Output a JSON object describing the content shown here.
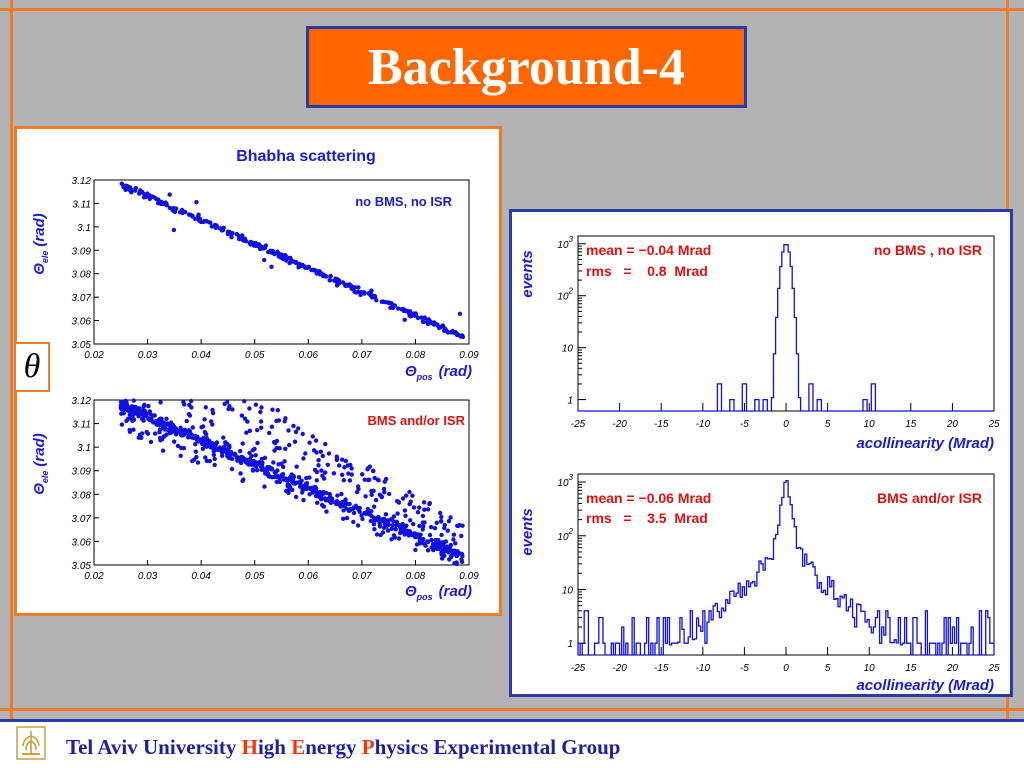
{
  "slide": {
    "title": "Background-4",
    "theta_symbol": "θ",
    "footer": [
      {
        "text": "Tel Aviv University ",
        "red": false
      },
      {
        "text": "H",
        "red": true
      },
      {
        "text": "igh ",
        "red": false
      },
      {
        "text": "E",
        "red": true
      },
      {
        "text": "nergy ",
        "red": false
      },
      {
        "text": "P",
        "red": true
      },
      {
        "text": "hysics Experimental Group",
        "red": false
      }
    ]
  },
  "chart_data": [
    {
      "type": "scatter",
      "title": "Bhabha scattering",
      "annotation": "no BMS, no ISR",
      "xlabel": "pos",
      "ylabel": "ele",
      "axis_symbol": "Θ",
      "axis_unit": "(rad)",
      "xlim": [
        0.02,
        0.09
      ],
      "ylim": [
        3.05,
        3.12
      ],
      "xticks": [
        "0.02",
        "0.03",
        "0.04",
        "0.05",
        "0.06",
        "0.07",
        "0.08",
        "0.09"
      ],
      "yticks": [
        "3.05",
        "3.06",
        "3.07",
        "3.08",
        "3.09",
        "3.1",
        "3.11",
        "3.12"
      ],
      "trend": {
        "x": [
          0.025,
          0.089
        ],
        "y": [
          3.118,
          3.053
        ]
      },
      "points_estimated": 330,
      "color": "#1010e0"
    },
    {
      "type": "scatter",
      "title": "",
      "annotation": "BMS and/or ISR",
      "xlabel": "pos",
      "ylabel": "ele",
      "axis_symbol": "Θ",
      "axis_unit": "(rad)",
      "xlim": [
        0.02,
        0.09
      ],
      "ylim": [
        3.05,
        3.12
      ],
      "xticks": [
        "0.02",
        "0.03",
        "0.04",
        "0.05",
        "0.06",
        "0.07",
        "0.08",
        "0.09"
      ],
      "yticks": [
        "3.05",
        "3.06",
        "3.07",
        "3.08",
        "3.09",
        "3.1",
        "3.11",
        "3.12"
      ],
      "trend": {
        "x": [
          0.025,
          0.089
        ],
        "y": [
          3.118,
          3.053
        ]
      },
      "points_estimated": 1000,
      "color": "#1010e0"
    },
    {
      "type": "bar",
      "title": "",
      "stats": [
        "mean = −0.04 Mrad",
        "rms   =    0.8  Mrad"
      ],
      "annotation": "no BMS , no ISR",
      "xlabel": "acollinearity (Mrad)",
      "ylabel": "events",
      "log_y": true,
      "xlim": [
        -25,
        25
      ],
      "xticks": [
        "-25",
        "-20",
        "-15",
        "-10",
        "-5",
        "0",
        "5",
        "10",
        "15",
        "20",
        "25"
      ],
      "yticks": [
        {
          "base": "1",
          "exp": ""
        },
        {
          "base": "10",
          "exp": ""
        },
        {
          "base": "10",
          "exp": "2"
        },
        {
          "base": "10",
          "exp": "3"
        }
      ],
      "peak": {
        "x": 0,
        "y": 1000,
        "rms": 0.8
      },
      "sparse_entries": [
        {
          "x": -8,
          "y": 2
        },
        {
          "x": -6.5,
          "y": 1
        },
        {
          "x": -5,
          "y": 2
        },
        {
          "x": -3.5,
          "y": 1
        },
        {
          "x": -2.5,
          "y": 1
        },
        {
          "x": 3,
          "y": 2
        },
        {
          "x": 4,
          "y": 1
        },
        {
          "x": 9.5,
          "y": 1
        },
        {
          "x": 10.5,
          "y": 2
        }
      ],
      "color": "#1010e0"
    },
    {
      "type": "bar",
      "title": "",
      "stats": [
        "mean = −0.06 Mrad",
        "rms   =    3.5  Mrad"
      ],
      "annotation": "BMS and/or ISR",
      "xlabel": "acollinearity (Mrad)",
      "ylabel": "events",
      "log_y": true,
      "xlim": [
        -25,
        25
      ],
      "xticks": [
        "-25",
        "-20",
        "-15",
        "-10",
        "-5",
        "0",
        "5",
        "10",
        "15",
        "20",
        "25"
      ],
      "yticks": [
        {
          "base": "1",
          "exp": ""
        },
        {
          "base": "10",
          "exp": ""
        },
        {
          "base": "10",
          "exp": "2"
        },
        {
          "base": "10",
          "exp": "3"
        }
      ],
      "peak": {
        "x": 0,
        "y": 1000,
        "rms": 3.5
      },
      "color": "#1010e0"
    }
  ]
}
